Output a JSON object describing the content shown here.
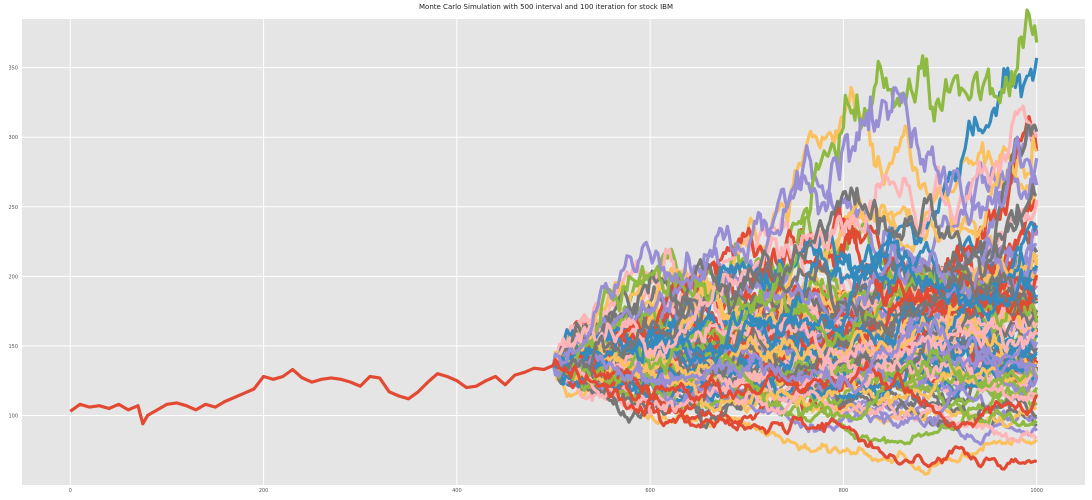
{
  "chart_data": {
    "type": "line",
    "title": "Monte Carlo Simulation with 500 interval and 100 iteration for stock IBM",
    "xlabel": "",
    "ylabel": "",
    "xlim": [
      -50,
      1050
    ],
    "ylim": [
      50,
      385
    ],
    "x_ticks": [
      0,
      200,
      400,
      600,
      800,
      1000
    ],
    "y_ticks": [
      100,
      150,
      200,
      250,
      300,
      350
    ],
    "grid": true,
    "background": "#e5e5e5",
    "grid_color": "#ffffff",
    "colors": [
      "#e24a33",
      "#348abd",
      "#988ed5",
      "#777777",
      "#fbc15e",
      "#8eba42",
      "#ffb5b8"
    ],
    "historical": {
      "color": "#e24a33",
      "x": [
        0,
        10,
        20,
        30,
        40,
        50,
        60,
        70,
        75,
        80,
        90,
        100,
        110,
        120,
        130,
        140,
        150,
        160,
        170,
        180,
        190,
        200,
        210,
        220,
        230,
        240,
        250,
        260,
        270,
        280,
        290,
        300,
        310,
        320,
        330,
        340,
        350,
        360,
        370,
        380,
        390,
        400,
        410,
        420,
        430,
        440,
        450,
        460,
        470,
        480,
        490,
        500
      ],
      "y": [
        103,
        108,
        106,
        107,
        105,
        108,
        104,
        107,
        94,
        100,
        104,
        108,
        109,
        107,
        104,
        108,
        106,
        110,
        113,
        116,
        119,
        128,
        126,
        128,
        133,
        127,
        124,
        126,
        127,
        126,
        124,
        121,
        128,
        127,
        117,
        114,
        112,
        117,
        124,
        130,
        128,
        125,
        120,
        121,
        125,
        128,
        122,
        129,
        131,
        134,
        133,
        136
      ]
    },
    "simulation": {
      "paths": 100,
      "start_x": 500,
      "end_x": 1000,
      "start_y": 136,
      "highlighted_finals": [
        {
          "color": "#348abd",
          "y": 357
        },
        {
          "color": "#8eba42",
          "y": 368
        },
        {
          "color": "#ffb5b8",
          "y": 300
        },
        {
          "color": "#777777",
          "y": 304
        },
        {
          "color": "#988ed5",
          "y": 285
        },
        {
          "color": "#e24a33",
          "y": 67
        }
      ]
    }
  }
}
